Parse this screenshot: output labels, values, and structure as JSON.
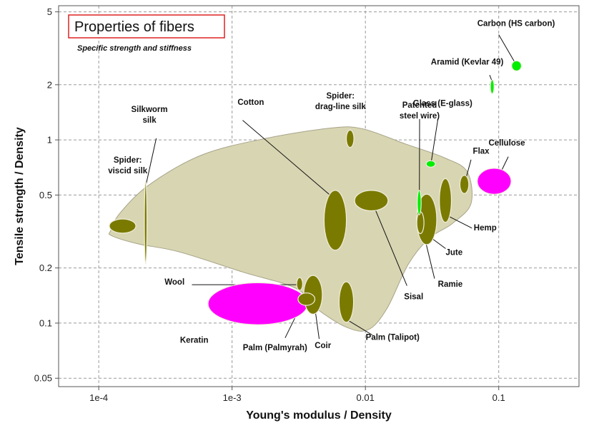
{
  "chart_data": {
    "type": "scatter",
    "title": "Properties of fibers",
    "subtitle": "Specific strength and stiffness",
    "xlabel": "Young's modulus / Density",
    "ylabel": "Tensile strength / Density",
    "xscale": "log",
    "yscale": "log",
    "xlim": [
      5e-05,
      0.4
    ],
    "ylim": [
      0.045,
      5.4
    ],
    "grid": true,
    "x_ticks": [
      {
        "value": 0.0001,
        "label": "1e-4"
      },
      {
        "value": 0.001,
        "label": "1e-3"
      },
      {
        "value": 0.01,
        "label": "0.01"
      },
      {
        "value": 0.1,
        "label": "0.1"
      }
    ],
    "y_ticks": [
      {
        "value": 0.05,
        "label": "0.05"
      },
      {
        "value": 0.1,
        "label": "0.1"
      },
      {
        "value": 0.2,
        "label": "0.2"
      },
      {
        "value": 0.5,
        "label": "0.5"
      },
      {
        "value": 1,
        "label": "1"
      },
      {
        "value": 2,
        "label": "2"
      },
      {
        "value": 5,
        "label": "5"
      }
    ],
    "colors": {
      "natural": "#7a7a00",
      "synthetic": "#00ee00",
      "protein": "#ff00ff",
      "envelope": "#d8d5b2",
      "title_box": "#dd2222"
    },
    "envelope": {
      "points": [
        [
          0.000123,
          0.32
        ],
        [
          0.000145,
          0.4
        ],
        [
          0.00024,
          0.57
        ],
        [
          0.0006,
          0.83
        ],
        [
          0.0018,
          1.02
        ],
        [
          0.0055,
          1.16
        ],
        [
          0.0095,
          1.15
        ],
        [
          0.02,
          0.95
        ],
        [
          0.039,
          0.8
        ],
        [
          0.058,
          0.67
        ],
        [
          0.062,
          0.45
        ],
        [
          0.045,
          0.35
        ],
        [
          0.03,
          0.29
        ],
        [
          0.021,
          0.21
        ],
        [
          0.0145,
          0.12
        ],
        [
          0.0105,
          0.092
        ],
        [
          0.0072,
          0.095
        ],
        [
          0.0043,
          0.12
        ],
        [
          0.003,
          0.155
        ],
        [
          0.0012,
          0.19
        ],
        [
          0.0004,
          0.245
        ],
        [
          0.0002,
          0.27
        ],
        [
          0.000125,
          0.3
        ]
      ]
    },
    "fibers": [
      {
        "name": "Spider: viscid silk",
        "lines": [
          "Spider:",
          "viscid silk"
        ],
        "group": "natural",
        "x": [
          0.00012,
          0.00019
        ],
        "y": [
          0.31,
          0.37
        ],
        "label_anchor": "middle"
      },
      {
        "name": "Silkworm silk",
        "lines": [
          "Silkworm",
          "silk"
        ],
        "group": "natural",
        "x": [
          0.00022,
          0.00023
        ],
        "y": [
          0.21,
          0.6
        ],
        "label_anchor": "middle"
      },
      {
        "name": "Cotton",
        "lines": [
          "Cotton"
        ],
        "group": "natural",
        "x": [
          0.0049,
          0.0072
        ],
        "y": [
          0.25,
          0.53
        ],
        "label_anchor": "start"
      },
      {
        "name": "Spider: drag-line silk",
        "lines": [
          "Spider:",
          "drag-line silk"
        ],
        "group": "natural",
        "x": [
          0.0072,
          0.0082
        ],
        "y": [
          0.91,
          1.13
        ],
        "label_anchor": "middle"
      },
      {
        "name": "Sisal",
        "lines": [
          "Sisal"
        ],
        "group": "natural",
        "x": [
          0.0083,
          0.0148
        ],
        "y": [
          0.41,
          0.53
        ],
        "label_anchor": "start"
      },
      {
        "name": "Wool",
        "lines": [
          "Wool"
        ],
        "group": "natural",
        "x": [
          0.00305,
          0.00338
        ],
        "y": [
          0.151,
          0.177
        ],
        "label_anchor": "end"
      },
      {
        "name": "Palm (Palmyrah)",
        "lines": [
          "Palm (Palmyrah)"
        ],
        "group": "natural",
        "x": [
          0.00312,
          0.00418
        ],
        "y": [
          0.125,
          0.146
        ],
        "label_anchor": "middle"
      },
      {
        "name": "Coir",
        "lines": [
          "Coir"
        ],
        "group": "natural",
        "x": [
          0.00345,
          0.00475
        ],
        "y": [
          0.112,
          0.182
        ],
        "label_anchor": "middle"
      },
      {
        "name": "Palm (Talipot)",
        "lines": [
          "Palm (Talipot)"
        ],
        "group": "natural",
        "x": [
          0.00635,
          0.00815
        ],
        "y": [
          0.101,
          0.168
        ],
        "label_anchor": "middle"
      },
      {
        "name": "Jute",
        "lines": [
          "Jute"
        ],
        "group": "natural",
        "x": [
          0.0242,
          0.0343
        ],
        "y": [
          0.268,
          0.505
        ],
        "label_anchor": "start"
      },
      {
        "name": "Ramie",
        "lines": [
          "Ramie"
        ],
        "group": "natural",
        "x": [
          0.0243,
          0.0275
        ],
        "y": [
          0.308,
          0.405
        ],
        "label_anchor": "start"
      },
      {
        "name": "Hemp",
        "lines": [
          "Hemp"
        ],
        "group": "natural",
        "x": [
          0.0359,
          0.0442
        ],
        "y": [
          0.355,
          0.615
        ],
        "label_anchor": "start"
      },
      {
        "name": "Flax",
        "lines": [
          "Flax"
        ],
        "group": "natural",
        "x": [
          0.0512,
          0.0596
        ],
        "y": [
          0.51,
          0.64
        ],
        "label_anchor": "start"
      },
      {
        "name": "Patented steel wire",
        "lines": [
          "Patented",
          "steel wire)"
        ],
        "group": "synthetic",
        "x": [
          0.0245,
          0.0262
        ],
        "y": [
          0.39,
          0.53
        ],
        "label_anchor": "middle"
      },
      {
        "name": "Glass (E-glass)",
        "lines": [
          "Glass (E-glass)"
        ],
        "group": "synthetic",
        "x": [
          0.0285,
          0.0335
        ],
        "y": [
          0.71,
          0.77
        ],
        "label_anchor": "middle"
      },
      {
        "name": "Aramid (Kevlar 49)",
        "lines": [
          "Aramid (Kevlar 49)"
        ],
        "group": "synthetic",
        "x": [
          0.0866,
          0.0923
        ],
        "y": [
          1.79,
          2.13
        ],
        "label_anchor": "middle"
      },
      {
        "name": "Carbon (HS carbon)",
        "lines": [
          "Carbon (HS carbon)"
        ],
        "group": "synthetic",
        "x": [
          0.125,
          0.148
        ],
        "y": [
          2.38,
          2.7
        ],
        "label_anchor": "middle"
      },
      {
        "name": "Keratin",
        "lines": [
          "Keratin"
        ],
        "group": "protein",
        "x": [
          0.00066,
          0.0037
        ],
        "y": [
          0.098,
          0.166
        ],
        "label_anchor": "middle"
      },
      {
        "name": "Cellulose",
        "lines": [
          "Cellulose"
        ],
        "group": "protein",
        "x": [
          0.069,
          0.124
        ],
        "y": [
          0.505,
          0.7
        ],
        "label_anchor": "middle"
      }
    ],
    "labels": {
      "Spider: viscid silk": {
        "x": 0.000165,
        "y": 0.75
      },
      "Silkworm silk": {
        "x": 0.00024,
        "y": 1.42
      },
      "Cotton": {
        "x": 0.0011,
        "y": 1.55
      },
      "Spider: drag-line silk": {
        "x": 0.0065,
        "y": 1.68
      },
      "Sisal": {
        "x": 0.0195,
        "y": 0.135
      },
      "Wool": {
        "x": 0.00044,
        "y": 0.162
      },
      "Palm (Palmyrah)": {
        "x": 0.0021,
        "y": 0.071
      },
      "Coir": {
        "x": 0.0048,
        "y": 0.073
      },
      "Palm (Talipot)": {
        "x": 0.016,
        "y": 0.081
      },
      "Jute": {
        "x": 0.04,
        "y": 0.235
      },
      "Ramie": {
        "x": 0.035,
        "y": 0.158
      },
      "Hemp": {
        "x": 0.065,
        "y": 0.32
      },
      "Flax": {
        "x": 0.064,
        "y": 0.84
      },
      "Patented steel wire": {
        "x": 0.0255,
        "y": 1.5
      },
      "Glass (E-glass)": {
        "x": 0.038,
        "y": 1.53
      },
      "Aramid (Kevlar 49)": {
        "x": 0.058,
        "y": 2.58
      },
      "Carbon (HS carbon)": {
        "x": 0.135,
        "y": 4.18
      },
      "Keratin": {
        "x": 0.00052,
        "y": 0.078
      },
      "Cellulose": {
        "x": 0.115,
        "y": 0.93
      }
    },
    "leaders": [
      {
        "fiber": "Silkworm silk",
        "from": [
          0.00027,
          1.02
        ],
        "to": [
          0.000225,
          0.56
        ]
      },
      {
        "fiber": "Cotton",
        "from": [
          0.0012,
          1.28
        ],
        "to": [
          0.0056,
          0.49
        ]
      },
      {
        "fiber": "Sisal",
        "from": [
          0.0118,
          0.42
        ],
        "to": [
          0.0205,
          0.16
        ]
      },
      {
        "fiber": "Wool",
        "from": [
          0.0005,
          0.162
        ],
        "to": [
          0.0031,
          0.162
        ]
      },
      {
        "fiber": "Palm (Palmyrah)",
        "from": [
          0.0025,
          0.083
        ],
        "to": [
          0.0034,
          0.131
        ]
      },
      {
        "fiber": "Coir",
        "from": [
          0.0045,
          0.082
        ],
        "to": [
          0.0042,
          0.118
        ]
      },
      {
        "fiber": "Palm (Talipot)",
        "from": [
          0.0113,
          0.086
        ],
        "to": [
          0.0075,
          0.103
        ]
      },
      {
        "fiber": "Jute",
        "from": [
          0.04,
          0.255
        ],
        "to": [
          0.0305,
          0.295
        ]
      },
      {
        "fiber": "Ramie",
        "from": [
          0.033,
          0.175
        ],
        "to": [
          0.027,
          0.32
        ]
      },
      {
        "fiber": "Hemp",
        "from": [
          0.063,
          0.33
        ],
        "to": [
          0.0415,
          0.385
        ]
      },
      {
        "fiber": "Flax",
        "from": [
          0.062,
          0.78
        ],
        "to": [
          0.0562,
          0.6
        ]
      },
      {
        "fiber": "Cellulose",
        "from": [
          0.118,
          0.81
        ],
        "to": [
          0.104,
          0.67
        ]
      },
      {
        "fiber": "Patented steel wire",
        "from": [
          0.0255,
          1.3
        ],
        "to": [
          0.0254,
          0.5
        ]
      },
      {
        "fiber": "Glass (E-glass)",
        "from": [
          0.035,
          1.3
        ],
        "to": [
          0.0312,
          0.76
        ]
      },
      {
        "fiber": "Aramid (Kevlar 49)",
        "from": [
          0.0855,
          2.26
        ],
        "to": [
          0.0893,
          2.08
        ]
      },
      {
        "fiber": "Carbon (HS carbon)",
        "from": [
          0.1,
          3.75
        ],
        "to": [
          0.132,
          2.65
        ]
      }
    ]
  }
}
